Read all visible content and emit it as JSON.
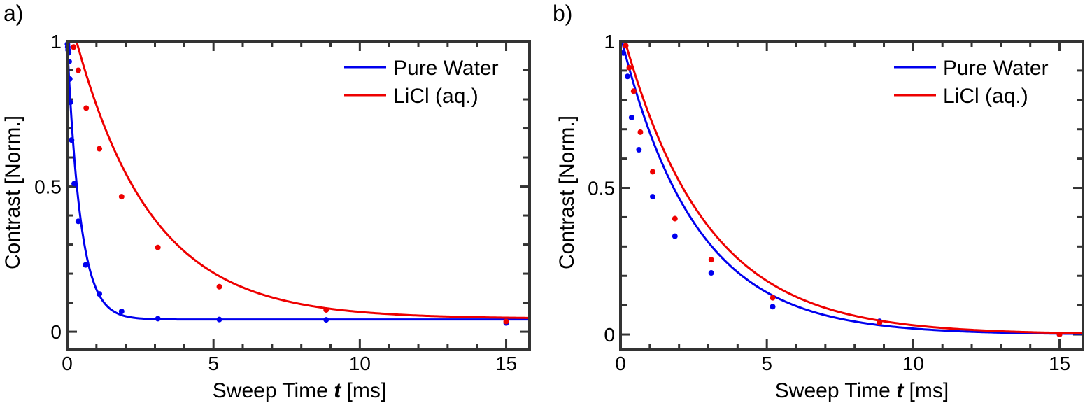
{
  "colors": {
    "pure_water": "#0000ee",
    "licl": "#ee0000",
    "axis": "#333333"
  },
  "chart_data": [
    {
      "type": "scatter",
      "panel_label": "a)",
      "xlabel_main": "Sweep Time ",
      "xlabel_var": "t",
      "xlabel_unit": " [ms]",
      "ylabel": "Contrast [Norm.]",
      "xlim": [
        0,
        15.8
      ],
      "ylim": [
        -0.06,
        1.0
      ],
      "x_ticks": [
        0,
        5,
        10,
        15
      ],
      "x_tick_labels": [
        "0",
        "5",
        "10",
        "15"
      ],
      "y_ticks": [
        0,
        0.5,
        1
      ],
      "y_tick_labels": [
        "0",
        "0.5",
        "1"
      ],
      "legend": [
        "Pure Water",
        "LiCl (aq.)"
      ],
      "legend_position": "top-right",
      "series": [
        {
          "name": "Pure Water",
          "color_key": "pure_water",
          "points": [
            [
              0.01,
              0.99
            ],
            [
              0.02,
              0.98
            ],
            [
              0.03,
              0.97
            ],
            [
              0.05,
              0.96
            ],
            [
              0.07,
              0.93
            ],
            [
              0.09,
              0.87
            ],
            [
              0.11,
              0.79
            ],
            [
              0.15,
              0.66
            ],
            [
              0.24,
              0.51
            ],
            [
              0.38,
              0.38
            ],
            [
              0.63,
              0.23
            ],
            [
              1.1,
              0.13
            ],
            [
              1.86,
              0.07
            ],
            [
              3.1,
              0.045
            ],
            [
              5.2,
              0.042
            ],
            [
              8.85,
              0.041
            ],
            [
              15.0,
              0.03
            ]
          ],
          "fit": {
            "model": "exp",
            "A": 0.958,
            "tau": 0.45,
            "C": 0.042,
            "x_start": 0.0
          }
        },
        {
          "name": "LiCl (aq.)",
          "color_key": "licl",
          "points": [
            [
              0.22,
              0.98
            ],
            [
              0.38,
              0.9
            ],
            [
              0.65,
              0.77
            ],
            [
              1.1,
              0.63
            ],
            [
              1.86,
              0.465
            ],
            [
              3.1,
              0.29
            ],
            [
              5.2,
              0.155
            ],
            [
              8.85,
              0.075
            ],
            [
              15.0,
              0.035
            ]
          ],
          "fit": {
            "model": "exp",
            "A": 1.0,
            "tau": 2.6,
            "C": 0.045,
            "x_start": 0.2
          }
        }
      ]
    },
    {
      "type": "scatter",
      "panel_label": "b)",
      "xlabel_main": "Sweep Time ",
      "xlabel_var": "t",
      "xlabel_unit": " [ms]",
      "ylabel": "Contrast  [Norm.]",
      "xlim": [
        0,
        15.8
      ],
      "ylim": [
        -0.05,
        1.0
      ],
      "x_ticks": [
        0,
        5,
        10,
        15
      ],
      "x_tick_labels": [
        "0",
        "5",
        "10",
        "15"
      ],
      "y_ticks": [
        0,
        0.5,
        1
      ],
      "y_tick_labels": [
        "0",
        "0.5",
        "1"
      ],
      "legend": [
        "Pure Water",
        "LiCl (aq.)"
      ],
      "legend_position": "top-right",
      "series": [
        {
          "name": "Pure Water",
          "color_key": "pure_water",
          "points": [
            [
              0.1,
              0.96
            ],
            [
              0.24,
              0.88
            ],
            [
              0.38,
              0.74
            ],
            [
              0.63,
              0.63
            ],
            [
              1.1,
              0.47
            ],
            [
              1.86,
              0.335
            ],
            [
              3.1,
              0.21
            ],
            [
              5.2,
              0.095
            ],
            [
              8.85,
              0.045
            ],
            [
              15.0,
              0.0
            ]
          ],
          "fit": {
            "model": "exp",
            "A": 1.0,
            "tau": 2.55,
            "C": 0.0,
            "x_start": 0.05
          }
        },
        {
          "name": "LiCl (aq.)",
          "color_key": "licl",
          "points": [
            [
              0.18,
              0.985
            ],
            [
              0.3,
              0.91
            ],
            [
              0.45,
              0.83
            ],
            [
              0.68,
              0.69
            ],
            [
              1.1,
              0.555
            ],
            [
              1.86,
              0.395
            ],
            [
              3.1,
              0.255
            ],
            [
              5.2,
              0.125
            ],
            [
              8.85,
              0.04
            ],
            [
              15.0,
              0.0
            ]
          ],
          "fit": {
            "model": "exp",
            "A": 1.02,
            "tau": 2.85,
            "C": 0.0,
            "x_start": 0.1
          }
        }
      ]
    }
  ]
}
